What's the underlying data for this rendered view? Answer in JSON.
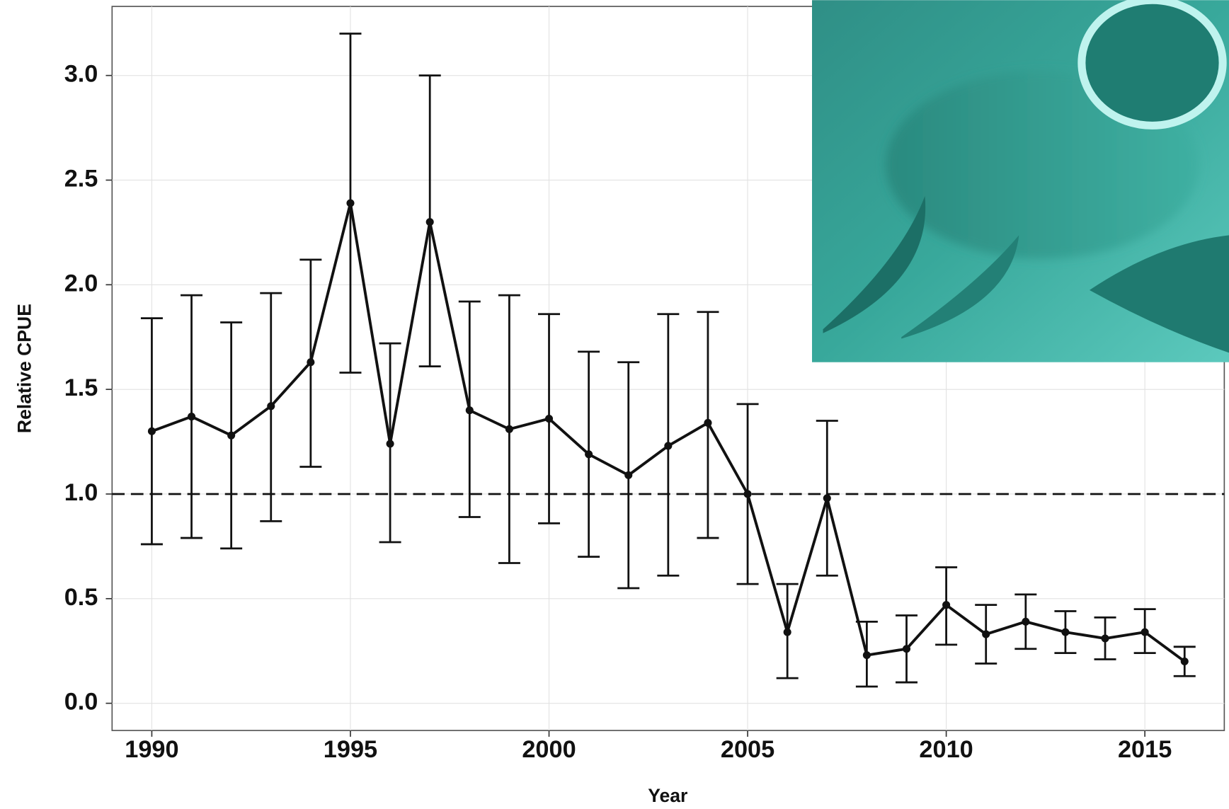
{
  "chart_data": {
    "type": "line",
    "x_label": "Year",
    "y_label": "Relative CPUE",
    "x": [
      1990,
      1991,
      1992,
      1993,
      1994,
      1995,
      1996,
      1997,
      1998,
      1999,
      2000,
      2001,
      2002,
      2003,
      2004,
      2005,
      2006,
      2007,
      2008,
      2009,
      2010,
      2011,
      2012,
      2013,
      2014,
      2015,
      2016
    ],
    "values": [
      1.3,
      1.37,
      1.28,
      1.42,
      1.63,
      2.39,
      1.24,
      2.3,
      1.4,
      1.31,
      1.36,
      1.19,
      1.09,
      1.23,
      1.34,
      1.0,
      0.34,
      0.98,
      0.23,
      0.26,
      0.47,
      0.33,
      0.39,
      0.34,
      0.31,
      0.34,
      0.2
    ],
    "lower": [
      0.76,
      0.79,
      0.74,
      0.87,
      1.13,
      1.58,
      0.77,
      1.61,
      0.89,
      0.67,
      0.86,
      0.7,
      0.55,
      0.61,
      0.79,
      0.57,
      0.12,
      0.61,
      0.08,
      0.1,
      0.28,
      0.19,
      0.26,
      0.24,
      0.21,
      0.24,
      0.13
    ],
    "upper": [
      1.84,
      1.95,
      1.82,
      1.96,
      2.12,
      3.2,
      1.72,
      3.0,
      1.92,
      1.95,
      1.86,
      1.68,
      1.63,
      1.86,
      1.87,
      1.43,
      0.57,
      1.35,
      0.39,
      0.42,
      0.65,
      0.47,
      0.52,
      0.44,
      0.41,
      0.45,
      0.27
    ],
    "color": "#111111",
    "reference_line": 1.0,
    "xlim": [
      1989,
      2017
    ],
    "ylim": [
      -0.13,
      3.33
    ],
    "xticks": [
      1990,
      1995,
      2000,
      2005,
      2010,
      2015
    ],
    "yticks": [
      {
        "value": 0,
        "label": "0.0"
      },
      0.5,
      {
        "value": 1,
        "label": "1.0"
      },
      1.5,
      {
        "value": 2,
        "label": "2.0"
      },
      2.5,
      {
        "value": 3,
        "label": "3.0"
      }
    ],
    "grid": true
  }
}
